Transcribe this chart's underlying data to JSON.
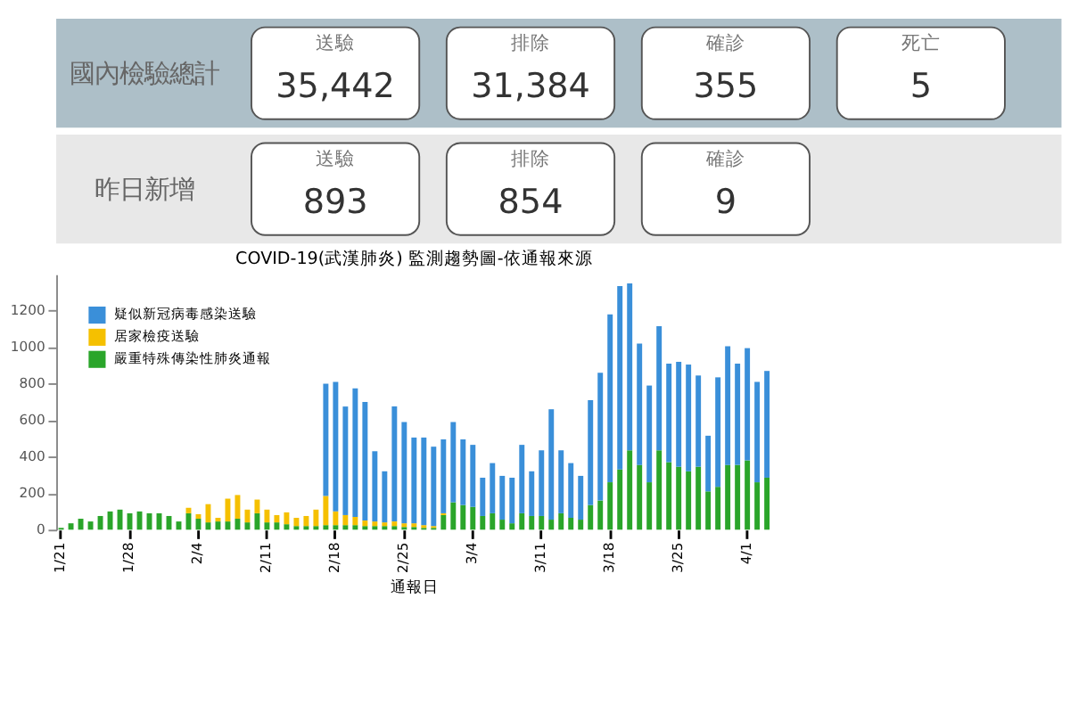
{
  "chart_data": [
    {
      "type": "other",
      "title": "國內檢驗總計",
      "categories": [
        "送驗",
        "排除",
        "確診",
        "死亡"
      ],
      "value_labels": [
        "35,442",
        "31,384",
        "355",
        "5"
      ]
    },
    {
      "type": "other",
      "title": "昨日新增",
      "categories": [
        "送驗",
        "排除",
        "確診"
      ],
      "value_labels": [
        "893",
        "854",
        "9"
      ]
    },
    {
      "type": "bar",
      "stacked": true,
      "title": "COVID-19(武漢肺炎) 監測趨勢圖-依通報來源",
      "xlabel": "通報日",
      "legend": "top left",
      "ylim": [
        0,
        1400
      ],
      "yticks": [
        0,
        200,
        400,
        600,
        800,
        1000,
        1200
      ],
      "categories": [
        "1/21",
        null,
        null,
        null,
        null,
        null,
        null,
        "1/28",
        null,
        null,
        null,
        null,
        null,
        null,
        "2/4",
        null,
        null,
        null,
        null,
        null,
        null,
        "2/11",
        null,
        null,
        null,
        null,
        null,
        null,
        "2/18",
        null,
        null,
        null,
        null,
        null,
        null,
        "2/25",
        null,
        null,
        null,
        null,
        null,
        null,
        "3/4",
        null,
        null,
        null,
        null,
        null,
        null,
        "3/11",
        null,
        null,
        null,
        null,
        null,
        null,
        "3/18",
        null,
        null,
        null,
        null,
        null,
        null,
        "3/25",
        null,
        null,
        null,
        null,
        null,
        null,
        "4/1",
        null,
        null
      ],
      "series": [
        {
          "name": "嚴重特殊傳染性肺炎通報",
          "color": "#2aa52a",
          "values": [
            10,
            35,
            60,
            45,
            75,
            100,
            110,
            90,
            100,
            90,
            90,
            75,
            45,
            90,
            60,
            40,
            45,
            45,
            60,
            40,
            90,
            40,
            40,
            30,
            20,
            20,
            20,
            25,
            25,
            25,
            25,
            20,
            20,
            20,
            20,
            15,
            15,
            10,
            10,
            80,
            150,
            135,
            125,
            75,
            90,
            55,
            35,
            90,
            75,
            75,
            55,
            90,
            65,
            55,
            135,
            160,
            260,
            330,
            435,
            355,
            260,
            435,
            370,
            345,
            320,
            345,
            210,
            235,
            355,
            355,
            380,
            260,
            285
          ]
        },
        {
          "name": "居家檢疫送驗",
          "color": "#f5c000",
          "values": [
            null,
            null,
            null,
            null,
            null,
            null,
            null,
            null,
            null,
            null,
            null,
            null,
            null,
            30,
            25,
            100,
            20,
            125,
            130,
            70,
            75,
            70,
            40,
            65,
            45,
            55,
            90,
            160,
            75,
            55,
            45,
            30,
            25,
            20,
            25,
            20,
            20,
            15,
            10,
            10,
            null,
            null,
            null,
            null,
            null,
            null,
            null,
            null,
            null,
            null,
            null,
            null,
            null,
            null,
            null,
            null,
            null,
            null,
            null,
            null,
            null,
            null,
            null,
            null,
            null,
            null,
            null,
            null,
            null,
            null,
            null,
            null,
            null
          ]
        },
        {
          "name": "疑似新冠病毒感染送驗",
          "color": "#3a8fd9",
          "values": [
            null,
            null,
            null,
            null,
            null,
            null,
            null,
            null,
            null,
            null,
            null,
            null,
            null,
            null,
            null,
            null,
            null,
            null,
            null,
            null,
            null,
            null,
            null,
            null,
            null,
            null,
            null,
            615,
            710,
            595,
            705,
            650,
            385,
            280,
            630,
            555,
            470,
            480,
            435,
            405,
            440,
            360,
            340,
            210,
            275,
            240,
            250,
            375,
            245,
            360,
            605,
            345,
            300,
            240,
            575,
            700,
            920,
            1005,
            915,
            665,
            530,
            680,
            540,
            575,
            585,
            500,
            305,
            600,
            650,
            555,
            615,
            550,
            585
          ]
        }
      ]
    }
  ]
}
